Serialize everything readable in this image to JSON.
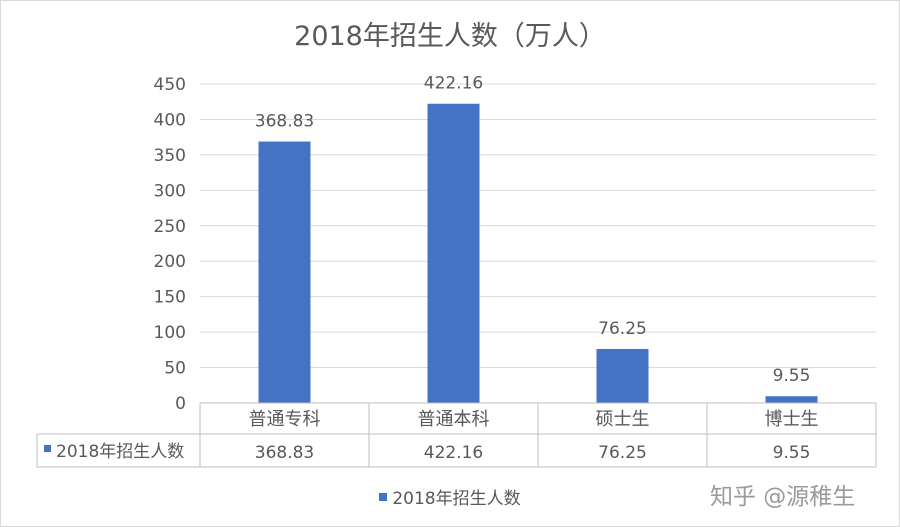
{
  "chart_data": {
    "type": "bar",
    "title": "2018年招生人数（万人）",
    "categories": [
      "普通专科",
      "普通本科",
      "硕士生",
      "博士生"
    ],
    "series": [
      {
        "name": "2018年招生人数",
        "values": [
          368.83,
          422.16,
          76.25,
          9.55
        ],
        "color": "#4472c4"
      }
    ],
    "data_labels": [
      "368.83",
      "422.16",
      "76.25",
      "9.55"
    ],
    "ylim": [
      0,
      450
    ],
    "yticks": [
      0,
      50,
      100,
      150,
      200,
      250,
      300,
      350,
      400,
      450
    ],
    "grid": true,
    "data_table": true,
    "legend_position": "bottom"
  },
  "watermark": "知乎 @源稚生"
}
